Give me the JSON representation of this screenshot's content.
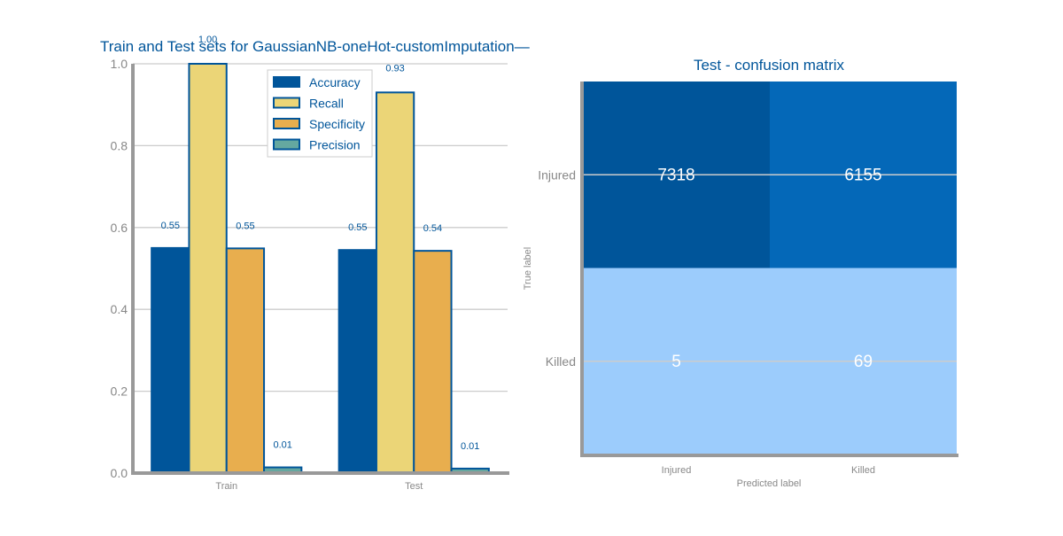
{
  "colors": {
    "accuracy": "#00559a",
    "recall": "#ebd577",
    "specificity": "#e8ae4e",
    "precision": "#65a8a0",
    "bar_edge": "#00559a",
    "title": "#00559a",
    "axis": "#999999",
    "grid": "#cccccc",
    "tick_text": "#888888",
    "cm_high": "#00559a",
    "cm_mid": "#0468b8",
    "cm_low": "#9cccfc"
  },
  "chart_data": [
    {
      "type": "bar",
      "title": "Train and Test sets for GaussianNB-oneHot-customImputation—",
      "xlabel": "",
      "ylabel": "",
      "categories": [
        "Train",
        "Test"
      ],
      "series": [
        {
          "name": "Accuracy",
          "values": [
            0.55,
            0.545
          ],
          "labels": [
            "0.55",
            "0.55"
          ],
          "color_key": "accuracy"
        },
        {
          "name": "Recall",
          "values": [
            1.0,
            0.93
          ],
          "labels": [
            "1.00",
            "0.93"
          ],
          "color_key": "recall"
        },
        {
          "name": "Specificity",
          "values": [
            0.549,
            0.543
          ],
          "labels": [
            "0.55",
            "0.54"
          ],
          "color_key": "specificity"
        },
        {
          "name": "Precision",
          "values": [
            0.014,
            0.011
          ],
          "labels": [
            "0.01",
            "0.01"
          ],
          "color_key": "precision"
        }
      ],
      "ylim": [
        0,
        1.0
      ],
      "yticks": [
        "0.0",
        "0.2",
        "0.4",
        "0.6",
        "0.8",
        "1.0"
      ],
      "grid": true,
      "legend": "top-center"
    },
    {
      "type": "heatmap",
      "title": "Test - confusion matrix",
      "xlabel": "Predicted label",
      "ylabel": "True label",
      "x_categories": [
        "Injured",
        "Killed"
      ],
      "y_categories": [
        "Injured",
        "Killed"
      ],
      "values": [
        [
          7318,
          6155
        ],
        [
          5,
          69
        ]
      ]
    }
  ]
}
